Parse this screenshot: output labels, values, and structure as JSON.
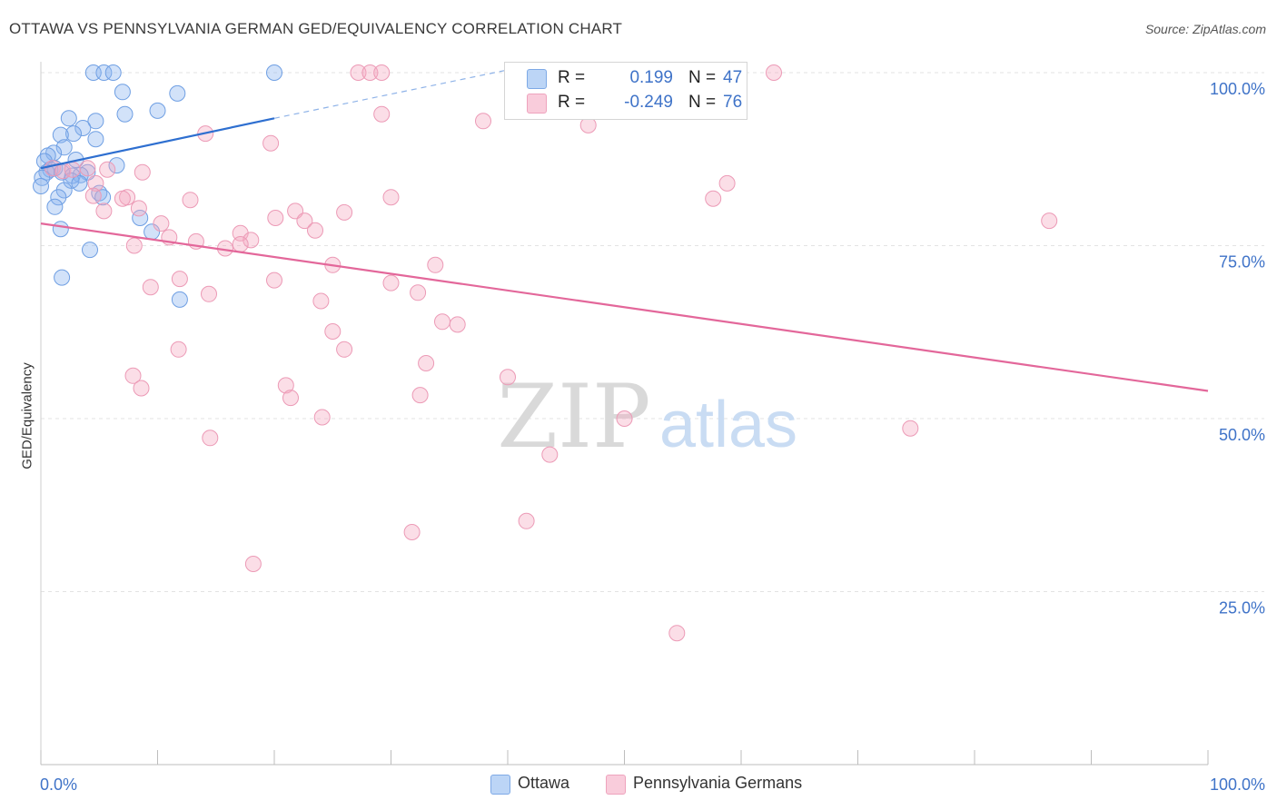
{
  "header": {
    "title": "OTTAWA VS PENNSYLVANIA GERMAN GED/EQUIVALENCY CORRELATION CHART",
    "source": "Source: ZipAtlas.com"
  },
  "watermark": {
    "zip": "ZIP",
    "atlas": "atlas"
  },
  "legend": {
    "r_label": "R =",
    "n_label": "N =",
    "series": [
      {
        "name": "Ottawa",
        "r": "0.199",
        "n": "47"
      },
      {
        "name": "Pennsylvania Germans",
        "r": "-0.249",
        "n": "76"
      }
    ]
  },
  "chart_data": {
    "type": "scatter",
    "ylabel": "GED/Equivalency",
    "xlim": [
      0,
      1
    ],
    "ylim": [
      0,
      1.02
    ],
    "x_tick_labels": [
      "0.0%",
      "100.0%"
    ],
    "y_tick_labels": [
      "25.0%",
      "50.0%",
      "75.0%",
      "100.0%"
    ],
    "y_ticks": [
      0.25,
      0.5,
      0.75,
      1.0
    ],
    "grid": true,
    "colors": {
      "Ottawa": "#8ab4f0",
      "Pennsylvania Germans": "#f4a8c0",
      "ottawa_line": "#2e6fd0",
      "penn_line": "#e3679a",
      "tick_label": "#3f73c8"
    },
    "series": [
      {
        "name": "Ottawa",
        "points": [
          [
            0.045,
            1.0
          ],
          [
            0.054,
            1.0
          ],
          [
            0.062,
            1.0
          ],
          [
            0.2,
            1.0
          ],
          [
            0.07,
            0.972
          ],
          [
            0.117,
            0.97
          ],
          [
            0.072,
            0.94
          ],
          [
            0.1,
            0.945
          ],
          [
            0.024,
            0.934
          ],
          [
            0.047,
            0.93
          ],
          [
            0.036,
            0.92
          ],
          [
            0.028,
            0.912
          ],
          [
            0.017,
            0.91
          ],
          [
            0.047,
            0.904
          ],
          [
            0.02,
            0.892
          ],
          [
            0.011,
            0.884
          ],
          [
            0.006,
            0.88
          ],
          [
            0.03,
            0.874
          ],
          [
            0.065,
            0.866
          ],
          [
            0.003,
            0.872
          ],
          [
            0.012,
            0.862
          ],
          [
            0.008,
            0.86
          ],
          [
            0.005,
            0.856
          ],
          [
            0.04,
            0.856
          ],
          [
            0.034,
            0.852
          ],
          [
            0.018,
            0.856
          ],
          [
            0.027,
            0.851
          ],
          [
            0.001,
            0.848
          ],
          [
            0.026,
            0.844
          ],
          [
            0.033,
            0.84
          ],
          [
            0.0,
            0.836
          ],
          [
            0.02,
            0.83
          ],
          [
            0.05,
            0.826
          ],
          [
            0.053,
            0.82
          ],
          [
            0.015,
            0.82
          ],
          [
            0.012,
            0.806
          ],
          [
            0.085,
            0.79
          ],
          [
            0.017,
            0.774
          ],
          [
            0.095,
            0.77
          ],
          [
            0.042,
            0.744
          ],
          [
            0.018,
            0.704
          ],
          [
            0.119,
            0.672
          ]
        ]
      },
      {
        "name": "Pennsylvania Germans",
        "points": [
          [
            0.272,
            1.0
          ],
          [
            0.282,
            1.0
          ],
          [
            0.292,
            1.0
          ],
          [
            0.628,
            1.0
          ],
          [
            0.292,
            0.94
          ],
          [
            0.379,
            0.93
          ],
          [
            0.469,
            0.924
          ],
          [
            0.141,
            0.912
          ],
          [
            0.197,
            0.898
          ],
          [
            0.01,
            0.862
          ],
          [
            0.019,
            0.858
          ],
          [
            0.027,
            0.86
          ],
          [
            0.04,
            0.862
          ],
          [
            0.057,
            0.86
          ],
          [
            0.087,
            0.856
          ],
          [
            0.047,
            0.84
          ],
          [
            0.588,
            0.84
          ],
          [
            0.045,
            0.822
          ],
          [
            0.074,
            0.82
          ],
          [
            0.07,
            0.818
          ],
          [
            0.128,
            0.816
          ],
          [
            0.3,
            0.82
          ],
          [
            0.576,
            0.818
          ],
          [
            0.054,
            0.8
          ],
          [
            0.084,
            0.804
          ],
          [
            0.218,
            0.8
          ],
          [
            0.26,
            0.798
          ],
          [
            0.201,
            0.79
          ],
          [
            0.226,
            0.786
          ],
          [
            0.103,
            0.782
          ],
          [
            0.864,
            0.786
          ],
          [
            0.235,
            0.772
          ],
          [
            0.171,
            0.768
          ],
          [
            0.11,
            0.762
          ],
          [
            0.133,
            0.756
          ],
          [
            0.18,
            0.758
          ],
          [
            0.171,
            0.752
          ],
          [
            0.08,
            0.75
          ],
          [
            0.158,
            0.746
          ],
          [
            0.25,
            0.722
          ],
          [
            0.338,
            0.722
          ],
          [
            0.2,
            0.7
          ],
          [
            0.119,
            0.702
          ],
          [
            0.094,
            0.69
          ],
          [
            0.3,
            0.696
          ],
          [
            0.144,
            0.68
          ],
          [
            0.323,
            0.682
          ],
          [
            0.24,
            0.67
          ],
          [
            0.344,
            0.64
          ],
          [
            0.357,
            0.636
          ],
          [
            0.25,
            0.626
          ],
          [
            0.26,
            0.6
          ],
          [
            0.118,
            0.6
          ],
          [
            0.33,
            0.58
          ],
          [
            0.079,
            0.562
          ],
          [
            0.4,
            0.56
          ],
          [
            0.086,
            0.544
          ],
          [
            0.21,
            0.548
          ],
          [
            0.214,
            0.53
          ],
          [
            0.325,
            0.534
          ],
          [
            0.241,
            0.502
          ],
          [
            0.5,
            0.5
          ],
          [
            0.745,
            0.486
          ],
          [
            0.145,
            0.472
          ],
          [
            0.436,
            0.448
          ],
          [
            0.416,
            0.352
          ],
          [
            0.318,
            0.336
          ],
          [
            0.182,
            0.29
          ],
          [
            0.545,
            0.19
          ]
        ]
      }
    ],
    "trendlines": [
      {
        "series": "Ottawa",
        "from": [
          0.0,
          0.862
        ],
        "to": [
          0.2,
          0.934
        ],
        "dashed_to": [
          0.4,
          1.004
        ]
      },
      {
        "series": "Pennsylvania Germans",
        "from": [
          0.0,
          0.782
        ],
        "to": [
          1.0,
          0.54
        ]
      }
    ]
  }
}
